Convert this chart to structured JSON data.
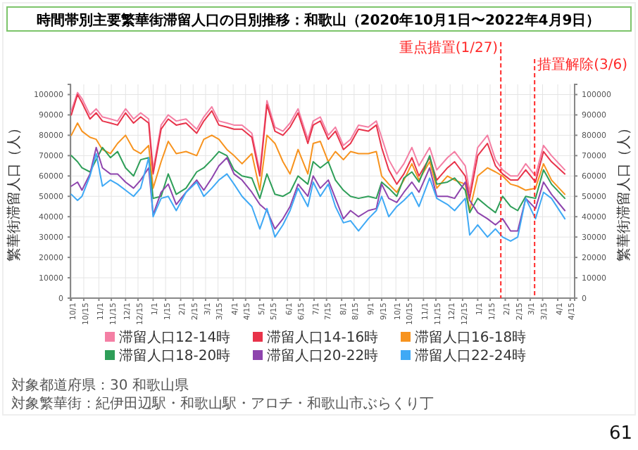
{
  "chart_data": {
    "type": "line",
    "title": "時間帯別主要繁華街滞留人口の日別推移：和歌山（2020年10月1日〜2022年4月9日）",
    "ylabel": "繁華街滞留人口（人）",
    "y2label": "繁華街滞留人口（人）",
    "x": [
      "2020-10-01",
      "2020-10-08",
      "2020-10-13",
      "2020-10-22",
      "2020-10-29",
      "2020-11-05",
      "2020-11-14",
      "2020-11-22",
      "2020-12-01",
      "2020-12-10",
      "2020-12-18",
      "2020-12-27",
      "2021-01-01",
      "2021-01-10",
      "2021-01-18",
      "2021-01-27",
      "2021-02-07",
      "2021-02-19",
      "2021-02-27",
      "2021-03-08",
      "2021-03-16",
      "2021-03-25",
      "2021-04-02",
      "2021-04-11",
      "2021-04-22",
      "2021-05-01",
      "2021-05-09",
      "2021-05-18",
      "2021-05-27",
      "2021-06-04",
      "2021-06-13",
      "2021-06-24",
      "2021-06-30",
      "2021-07-08",
      "2021-07-17",
      "2021-07-25",
      "2021-08-03",
      "2021-08-11",
      "2021-08-20",
      "2021-08-31",
      "2021-09-09",
      "2021-09-15",
      "2021-09-23",
      "2021-10-02",
      "2021-10-10",
      "2021-10-19",
      "2021-10-27",
      "2021-11-08",
      "2021-11-16",
      "2021-11-28",
      "2021-12-06",
      "2021-12-18",
      "2021-12-23",
      "2022-01-01",
      "2022-01-12",
      "2022-01-21",
      "2022-01-29",
      "2022-02-07",
      "2022-02-15",
      "2022-02-24",
      "2022-03-07",
      "2022-03-16",
      "2022-03-25",
      "2022-04-09"
    ],
    "xlim": [
      "2020-09-30",
      "2022-04-20"
    ],
    "xticks": [
      {
        "value": "2020-10-01",
        "label": "10/1"
      },
      {
        "value": "2020-10-15",
        "label": "10/15"
      },
      {
        "value": "2020-11-01",
        "label": "11/1"
      },
      {
        "value": "2020-11-15",
        "label": "11/15"
      },
      {
        "value": "2020-12-01",
        "label": "12/1"
      },
      {
        "value": "2020-12-15",
        "label": "12/15"
      },
      {
        "value": "2021-01-01",
        "label": "1/1"
      },
      {
        "value": "2021-01-15",
        "label": "1/15"
      },
      {
        "value": "2021-02-01",
        "label": "2/1"
      },
      {
        "value": "2021-02-15",
        "label": "2/15"
      },
      {
        "value": "2021-03-01",
        "label": "3/1"
      },
      {
        "value": "2021-03-15",
        "label": "3/15"
      },
      {
        "value": "2021-04-01",
        "label": "4/1"
      },
      {
        "value": "2021-04-15",
        "label": "4/15"
      },
      {
        "value": "2021-05-01",
        "label": "5/1"
      },
      {
        "value": "2021-05-15",
        "label": "5/15"
      },
      {
        "value": "2021-06-01",
        "label": "6/1"
      },
      {
        "value": "2021-06-15",
        "label": "6/15"
      },
      {
        "value": "2021-07-01",
        "label": "7/1"
      },
      {
        "value": "2021-07-15",
        "label": "7/15"
      },
      {
        "value": "2021-08-01",
        "label": "8/1"
      },
      {
        "value": "2021-08-15",
        "label": "8/15"
      },
      {
        "value": "2021-09-01",
        "label": "9/1"
      },
      {
        "value": "2021-09-15",
        "label": "9/15"
      },
      {
        "value": "2021-10-01",
        "label": "10/1"
      },
      {
        "value": "2021-10-15",
        "label": "10/15"
      },
      {
        "value": "2021-11-01",
        "label": "11/1"
      },
      {
        "value": "2021-11-15",
        "label": "11/15"
      },
      {
        "value": "2021-12-01",
        "label": "12/1"
      },
      {
        "value": "2021-12-15",
        "label": "12/15"
      },
      {
        "value": "2022-01-01",
        "label": "1/1"
      },
      {
        "value": "2022-01-15",
        "label": "1/15"
      },
      {
        "value": "2022-02-01",
        "label": "2/1"
      },
      {
        "value": "2022-02-15",
        "label": "2/15"
      },
      {
        "value": "2022-03-01",
        "label": "3/1"
      },
      {
        "value": "2022-03-15",
        "label": "3/15"
      },
      {
        "value": "2022-04-01",
        "label": "4/1"
      },
      {
        "value": "2022-04-15",
        "label": "4/15"
      }
    ],
    "ylim": [
      0,
      105000
    ],
    "yticks": [
      0,
      10000,
      20000,
      30000,
      40000,
      50000,
      60000,
      70000,
      80000,
      90000,
      100000
    ],
    "y2lim": [
      0,
      105000
    ],
    "y2ticks": [
      0,
      10000,
      20000,
      30000,
      40000,
      50000,
      60000,
      70000,
      80000,
      90000,
      100000
    ],
    "grid": true,
    "legend": "bottom",
    "line_style": "solid",
    "series": [
      {
        "name": "滞留人口12-14時",
        "color": "#f47fa4",
        "values": [
          92000,
          101000,
          98000,
          90000,
          93000,
          89000,
          88000,
          87000,
          93000,
          88000,
          91000,
          88000,
          63000,
          85000,
          90000,
          87000,
          88000,
          83000,
          89000,
          94000,
          87000,
          86000,
          85000,
          85000,
          81000,
          62000,
          97000,
          84000,
          82000,
          86000,
          93000,
          78000,
          87000,
          89000,
          80000,
          84000,
          75000,
          78000,
          85000,
          84000,
          87000,
          79000,
          68000,
          61000,
          66000,
          74000,
          65000,
          74000,
          63000,
          69000,
          72000,
          65000,
          52000,
          74000,
          80000,
          68000,
          63000,
          60000,
          60000,
          66000,
          60000,
          75000,
          70000,
          63000
        ]
      },
      {
        "name": "滞留人口14-16時",
        "color": "#e8334a",
        "values": [
          90000,
          100000,
          96000,
          88000,
          91000,
          87000,
          86000,
          85000,
          91000,
          86000,
          89000,
          86000,
          61000,
          83000,
          88000,
          85000,
          86000,
          81000,
          87000,
          92000,
          85000,
          84000,
          83000,
          83000,
          79000,
          60000,
          95000,
          82000,
          80000,
          84000,
          91000,
          76000,
          85000,
          87000,
          78000,
          82000,
          73000,
          76000,
          83000,
          82000,
          85000,
          74000,
          63000,
          56000,
          61000,
          69000,
          60000,
          69000,
          58000,
          64000,
          67000,
          60000,
          49000,
          70000,
          76000,
          65000,
          61000,
          58000,
          58000,
          63000,
          57000,
          72000,
          67000,
          61000
        ]
      },
      {
        "name": "滞留人口16-18時",
        "color": "#f7931e",
        "values": [
          80000,
          86000,
          82000,
          79000,
          78000,
          73000,
          71000,
          76000,
          80000,
          73000,
          71000,
          75000,
          54000,
          67000,
          77000,
          71000,
          72000,
          70000,
          78000,
          80000,
          78000,
          73000,
          70000,
          66000,
          71000,
          53000,
          80000,
          76000,
          67000,
          61000,
          73000,
          61000,
          76000,
          77000,
          67000,
          72000,
          68000,
          72000,
          71000,
          71000,
          72000,
          60000,
          56000,
          52000,
          58000,
          66000,
          58000,
          67000,
          54000,
          60000,
          58000,
          56000,
          43000,
          60000,
          64000,
          62000,
          60000,
          56000,
          55000,
          53000,
          54000,
          66000,
          58000,
          51000
        ]
      },
      {
        "name": "滞留人口18-20時",
        "color": "#2e9e58",
        "values": [
          70000,
          67000,
          64000,
          62000,
          68000,
          74000,
          69000,
          72000,
          64000,
          60000,
          68000,
          69000,
          49000,
          50000,
          61000,
          51000,
          54000,
          62000,
          64000,
          68000,
          72000,
          70000,
          63000,
          60000,
          59000,
          49000,
          61000,
          51000,
          50000,
          52000,
          60000,
          56000,
          67000,
          64000,
          67000,
          58000,
          53000,
          50000,
          49000,
          50000,
          49000,
          57000,
          54000,
          50000,
          59000,
          62000,
          57000,
          70000,
          56000,
          57000,
          59000,
          53000,
          42000,
          49000,
          45000,
          42000,
          50000,
          45000,
          43000,
          50000,
          49000,
          63000,
          56000,
          49000
        ]
      },
      {
        "name": "滞留人口20-22時",
        "color": "#8e44ad",
        "values": [
          55000,
          57000,
          53000,
          61000,
          74000,
          64000,
          61000,
          61000,
          57000,
          54000,
          58000,
          64000,
          41000,
          52000,
          56000,
          46000,
          52000,
          58000,
          53000,
          59000,
          65000,
          69000,
          61000,
          58000,
          52000,
          46000,
          43000,
          34000,
          39000,
          45000,
          56000,
          50000,
          60000,
          54000,
          58000,
          49000,
          39000,
          43000,
          40000,
          43000,
          44000,
          56000,
          49000,
          47000,
          52000,
          57000,
          52000,
          64000,
          50000,
          50000,
          49000,
          57000,
          48000,
          42000,
          39000,
          36000,
          39000,
          33000,
          33000,
          49000,
          44000,
          57000,
          51000,
          43000
        ]
      },
      {
        "name": "滞留人口22-24時",
        "color": "#3fa9f5",
        "values": [
          51000,
          48000,
          50000,
          60000,
          71000,
          55000,
          58000,
          56000,
          53000,
          50000,
          54000,
          69000,
          40000,
          49000,
          50000,
          43000,
          52000,
          57000,
          50000,
          54000,
          58000,
          61000,
          56000,
          50000,
          45000,
          34000,
          44000,
          30000,
          36000,
          43000,
          54000,
          45000,
          57000,
          50000,
          56000,
          45000,
          37000,
          38000,
          33000,
          39000,
          43000,
          50000,
          40000,
          45000,
          48000,
          52000,
          45000,
          59000,
          49000,
          46000,
          43000,
          49000,
          31000,
          36000,
          30000,
          34000,
          30000,
          28000,
          30000,
          49000,
          39000,
          52000,
          49000,
          39000
        ]
      }
    ],
    "ref_lines": [
      {
        "axis": "x",
        "value": "2022-01-27",
        "label": "重点措置(1/27)",
        "color": "#ff2a2a",
        "line_style": "dashed"
      },
      {
        "axis": "x",
        "value": "2022-03-06",
        "label": "措置解除(3/6)",
        "color": "#ff2a2a",
        "line_style": "dashed"
      }
    ],
    "annotations": [
      "対象都道府県：30 和歌山県",
      "対象繁華街：紀伊田辺駅・和歌山駅・アロチ・和歌山市ぶらくり丁",
      "61"
    ]
  }
}
